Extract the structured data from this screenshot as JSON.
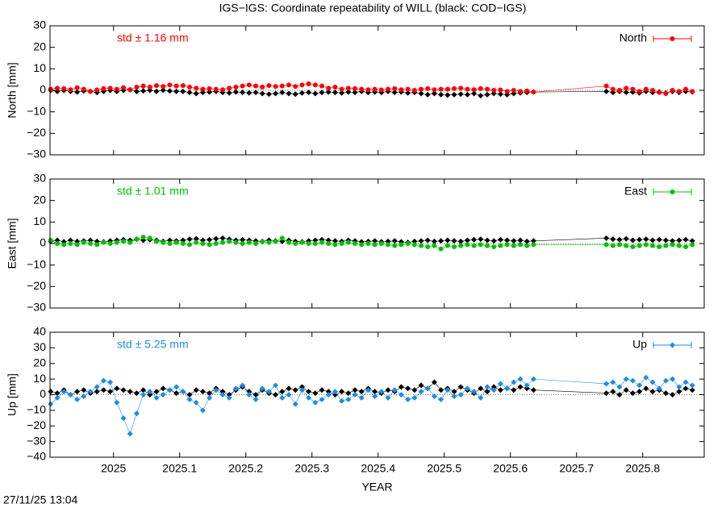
{
  "header": {
    "title": "IGS−IGS: Coordinate repeatability of WILL (black: COD−IGS)"
  },
  "footer": {
    "timestamp": "27/11/25 13:04"
  },
  "chart_data": [
    {
      "type": "line",
      "ylabel": "North [mm]",
      "annotation": "std ± 1.16 mm",
      "legend": "top-right",
      "zero_line": true,
      "xlim": [
        2024.904,
        2025.893
      ],
      "xticks": [
        2025,
        2025.1,
        2025.2,
        2025.3,
        2025.4,
        2025.5,
        2025.6,
        2025.7,
        2025.8
      ],
      "ylim": [
        -30,
        30
      ],
      "yticks": [
        {
          "value": -30,
          "label": "−30"
        },
        {
          "value": -20,
          "label": "−20"
        },
        {
          "value": -10,
          "label": "−10"
        },
        0,
        10,
        20,
        30
      ],
      "x": [
        2024.905,
        2024.915,
        2024.925,
        2024.935,
        2024.945,
        2024.955,
        2024.965,
        2024.975,
        2024.985,
        2024.995,
        2025.005,
        2025.015,
        2025.025,
        2025.035,
        2025.045,
        2025.055,
        2025.065,
        2025.075,
        2025.085,
        2025.095,
        2025.105,
        2025.115,
        2025.125,
        2025.135,
        2025.145,
        2025.155,
        2025.165,
        2025.175,
        2025.185,
        2025.195,
        2025.205,
        2025.215,
        2025.225,
        2025.235,
        2025.245,
        2025.255,
        2025.265,
        2025.275,
        2025.285,
        2025.295,
        2025.305,
        2025.315,
        2025.325,
        2025.335,
        2025.345,
        2025.355,
        2025.365,
        2025.375,
        2025.385,
        2025.395,
        2025.405,
        2025.415,
        2025.425,
        2025.435,
        2025.445,
        2025.455,
        2025.465,
        2025.475,
        2025.485,
        2025.495,
        2025.505,
        2025.515,
        2025.525,
        2025.535,
        2025.545,
        2025.555,
        2025.565,
        2025.575,
        2025.585,
        2025.595,
        2025.605,
        2025.615,
        2025.625,
        2025.635,
        2025.745,
        2025.755,
        2025.765,
        2025.775,
        2025.785,
        2025.795,
        2025.805,
        2025.815,
        2025.825,
        2025.835,
        2025.845,
        2025.855,
        2025.865,
        2025.875
      ],
      "series": [
        {
          "color": "#000000",
          "marker": "diamond",
          "values": [
            0,
            -0.5,
            0,
            -0.5,
            -0.8,
            -0.3,
            -0.5,
            -1,
            -0.5,
            0,
            -0.5,
            0,
            0.3,
            -0.5,
            -0.3,
            0,
            -0.5,
            0,
            -0.3,
            -0.5,
            -0.5,
            -1,
            -1.5,
            -1,
            -0.8,
            -0.5,
            -1,
            -1.2,
            -0.8,
            -1,
            -1.2,
            -1,
            -1.5,
            -1.8,
            -1.5,
            -1,
            -1.5,
            -1.8,
            -1.2,
            -1,
            -1.5,
            -1,
            -0.8,
            -1,
            -1.2,
            -0.8,
            -1,
            -0.5,
            -1,
            -0.8,
            -1,
            -0.5,
            -1,
            -0.8,
            -1.2,
            -1,
            -1.5,
            -2,
            -1.5,
            -2,
            -2.2,
            -2,
            -1.8,
            -2,
            -1.5,
            -2.5,
            -2,
            -1.5,
            -1.8,
            -2,
            -1.5,
            -1.2,
            -1,
            -0.8,
            -0.5,
            -1,
            -0.5,
            -1,
            -0.8,
            -1.2,
            -0.5,
            -1,
            -0.8,
            -1.2,
            -0.5,
            -1,
            -0.5,
            -0.8
          ]
        },
        {
          "name": "North",
          "color": "#ff0000",
          "marker": "circle",
          "values": [
            0.5,
            1,
            0.8,
            0.3,
            1.2,
            0.5,
            -0.5,
            0.2,
            0.8,
            1,
            0.5,
            1.2,
            0.3,
            1.5,
            2,
            1.5,
            2.2,
            1.8,
            2.5,
            2,
            2.2,
            1.5,
            1,
            0.5,
            0.8,
            0.5,
            0.3,
            1,
            1.5,
            2,
            2.5,
            2,
            1.5,
            2.2,
            1.8,
            2,
            2.5,
            1.8,
            2.5,
            3,
            2.5,
            2,
            1,
            1.5,
            0.5,
            1,
            0.8,
            0.5,
            0.3,
            0.5,
            0.2,
            0.5,
            0.8,
            0.3,
            0.5,
            0,
            0.5,
            0.8,
            0.3,
            0.5,
            0.5,
            0.8,
            1,
            0.5,
            0.3,
            0.8,
            0.5,
            0,
            0.2,
            -0.5,
            0,
            -0.5,
            -0.3,
            -0.8,
            2,
            0.5,
            0,
            1,
            0.5,
            -0.5,
            0.5,
            0,
            -1,
            -1.5,
            0,
            -0.5,
            0.5,
            -0.5
          ]
        }
      ]
    },
    {
      "type": "line",
      "ylabel": "East [mm]",
      "annotation": "std ± 1.01 mm",
      "legend": "top-right",
      "zero_line": true,
      "xlim": [
        2024.904,
        2025.893
      ],
      "xticks": [
        2025,
        2025.1,
        2025.2,
        2025.3,
        2025.4,
        2025.5,
        2025.6,
        2025.7,
        2025.8
      ],
      "ylim": [
        -30,
        30
      ],
      "yticks": [
        {
          "value": -30,
          "label": "−30"
        },
        {
          "value": -20,
          "label": "−20"
        },
        {
          "value": -10,
          "label": "−10"
        },
        0,
        10,
        20,
        30
      ],
      "x": [
        2024.905,
        2024.915,
        2024.925,
        2024.935,
        2024.945,
        2024.955,
        2024.965,
        2024.975,
        2024.985,
        2024.995,
        2025.005,
        2025.015,
        2025.025,
        2025.035,
        2025.045,
        2025.055,
        2025.065,
        2025.075,
        2025.085,
        2025.095,
        2025.105,
        2025.115,
        2025.125,
        2025.135,
        2025.145,
        2025.155,
        2025.165,
        2025.175,
        2025.185,
        2025.195,
        2025.205,
        2025.215,
        2025.225,
        2025.235,
        2025.245,
        2025.255,
        2025.265,
        2025.275,
        2025.285,
        2025.295,
        2025.305,
        2025.315,
        2025.325,
        2025.335,
        2025.345,
        2025.355,
        2025.365,
        2025.375,
        2025.385,
        2025.395,
        2025.405,
        2025.415,
        2025.425,
        2025.435,
        2025.445,
        2025.455,
        2025.465,
        2025.475,
        2025.485,
        2025.495,
        2025.505,
        2025.515,
        2025.525,
        2025.535,
        2025.545,
        2025.555,
        2025.565,
        2025.575,
        2025.585,
        2025.595,
        2025.605,
        2025.615,
        2025.625,
        2025.635,
        2025.745,
        2025.755,
        2025.765,
        2025.775,
        2025.785,
        2025.795,
        2025.805,
        2025.815,
        2025.825,
        2025.835,
        2025.845,
        2025.855,
        2025.865,
        2025.875
      ],
      "series": [
        {
          "color": "#000000",
          "marker": "diamond",
          "values": [
            1,
            1.5,
            0.8,
            1.5,
            1,
            1.2,
            1.5,
            1,
            0.8,
            1.2,
            1.5,
            1.8,
            1.5,
            2,
            1.5,
            1.8,
            1.5,
            1,
            1.5,
            1.2,
            1.5,
            2,
            2.2,
            1.5,
            1.8,
            2.2,
            2.5,
            2,
            1.5,
            1.8,
            1.5,
            1.2,
            1,
            1.5,
            1.2,
            1,
            1.5,
            1,
            0.8,
            1.2,
            1.5,
            1.8,
            1.5,
            1.2,
            1,
            1.5,
            1.2,
            0.8,
            1,
            1.2,
            0.8,
            1,
            1.2,
            0.8,
            0.5,
            1,
            1.2,
            1.5,
            1,
            1.2,
            1.5,
            1.2,
            1,
            1.5,
            1.8,
            2,
            1.5,
            1.2,
            1.8,
            1.5,
            1.2,
            1.5,
            1,
            1.2,
            2.5,
            2,
            1.8,
            2.2,
            1.5,
            1.8,
            2,
            1.5,
            1.8,
            1.5,
            1.2,
            1.5,
            1.8,
            1.2
          ]
        },
        {
          "name": "East",
          "color": "#00c000",
          "marker": "circle",
          "values": [
            1.5,
            0,
            -0.5,
            0,
            -0.5,
            0.5,
            0,
            -0.5,
            0.5,
            0,
            0.5,
            1,
            0.5,
            2,
            3,
            2.5,
            1,
            0.5,
            0,
            0.5,
            0,
            -0.5,
            0.5,
            0,
            -0.5,
            0,
            0.5,
            1,
            0.5,
            0,
            0.5,
            0,
            0.8,
            0.5,
            1,
            2.5,
            0.5,
            0,
            0.5,
            0,
            0,
            0.5,
            0,
            -0.5,
            0,
            0.5,
            0,
            -0.5,
            0,
            -0.5,
            0,
            -0.5,
            -1,
            -0.5,
            0,
            -0.5,
            -1,
            -1.5,
            -1,
            -2.5,
            -1,
            -1.5,
            -1,
            -0.5,
            -1,
            -0.5,
            -1,
            -1.5,
            -1,
            -0.5,
            -1,
            -0.5,
            -1,
            -0.5,
            -0.5,
            -1,
            -0.5,
            -1,
            -1.5,
            -1,
            -0.5,
            -1,
            -1.5,
            -1,
            -0.5,
            -1,
            -1.5,
            -0.5
          ]
        }
      ]
    },
    {
      "type": "line",
      "ylabel": "Up [mm]",
      "xlabel": "YEAR",
      "annotation": "std ± 5.25 mm",
      "legend": "top-right",
      "zero_line": true,
      "xlim": [
        2024.904,
        2025.893
      ],
      "xticks": [
        2025,
        2025.1,
        2025.2,
        2025.3,
        2025.4,
        2025.5,
        2025.6,
        2025.7,
        2025.8
      ],
      "ylim": [
        -40,
        40
      ],
      "yticks": [
        {
          "value": -40,
          "label": "−40"
        },
        {
          "value": -30,
          "label": "−30"
        },
        {
          "value": -20,
          "label": "−20"
        },
        {
          "value": -10,
          "label": "−10"
        },
        0,
        10,
        20,
        30,
        40
      ],
      "x": [
        2024.905,
        2024.915,
        2024.925,
        2024.935,
        2024.945,
        2024.955,
        2024.965,
        2024.975,
        2024.985,
        2024.995,
        2025.005,
        2025.015,
        2025.025,
        2025.035,
        2025.045,
        2025.055,
        2025.065,
        2025.075,
        2025.085,
        2025.095,
        2025.105,
        2025.115,
        2025.125,
        2025.135,
        2025.145,
        2025.155,
        2025.165,
        2025.175,
        2025.185,
        2025.195,
        2025.205,
        2025.215,
        2025.225,
        2025.235,
        2025.245,
        2025.255,
        2025.265,
        2025.275,
        2025.285,
        2025.295,
        2025.305,
        2025.315,
        2025.325,
        2025.335,
        2025.345,
        2025.355,
        2025.365,
        2025.375,
        2025.385,
        2025.395,
        2025.405,
        2025.415,
        2025.425,
        2025.435,
        2025.445,
        2025.455,
        2025.465,
        2025.475,
        2025.485,
        2025.495,
        2025.505,
        2025.515,
        2025.525,
        2025.535,
        2025.545,
        2025.555,
        2025.565,
        2025.575,
        2025.585,
        2025.595,
        2025.605,
        2025.615,
        2025.625,
        2025.635,
        2025.745,
        2025.755,
        2025.765,
        2025.775,
        2025.785,
        2025.795,
        2025.805,
        2025.815,
        2025.825,
        2025.835,
        2025.845,
        2025.855,
        2025.865,
        2025.875
      ],
      "series": [
        {
          "color": "#000000",
          "marker": "diamond",
          "values": [
            2,
            1,
            3,
            0,
            2,
            3,
            1,
            2,
            3,
            2,
            4,
            3,
            2,
            1,
            3,
            0,
            2,
            4,
            3,
            1,
            2,
            0,
            3,
            2,
            1,
            4,
            2,
            0,
            3,
            5,
            2,
            0,
            3,
            1,
            0,
            2,
            4,
            3,
            5,
            2,
            1,
            3,
            2,
            0,
            2,
            1,
            3,
            2,
            4,
            2,
            1,
            3,
            2,
            5,
            4,
            3,
            6,
            4,
            8,
            3,
            4,
            2,
            5,
            3,
            1,
            4,
            2,
            5,
            3,
            4,
            3,
            5,
            4,
            3,
            1,
            2,
            0,
            3,
            1,
            2,
            4,
            2,
            3,
            1,
            0,
            2,
            4,
            3
          ]
        },
        {
          "name": "Up",
          "color": "#1e8ae6",
          "marker": "diamond",
          "values": [
            -6,
            -2,
            2,
            0,
            -3,
            -1,
            2,
            5,
            9,
            8,
            -5,
            -15,
            -25,
            -12,
            0,
            2,
            -2,
            0,
            3,
            5,
            2,
            -3,
            -5,
            -10,
            -2,
            3,
            0,
            -2,
            4,
            6,
            0,
            -3,
            4,
            2,
            6,
            -2,
            0,
            -6,
            3,
            -2,
            -5,
            -3,
            0,
            2,
            -4,
            -3,
            0,
            -2,
            3,
            -1,
            2,
            -2,
            3,
            0,
            -3,
            -2,
            2,
            4,
            -1,
            -3,
            3,
            -1,
            0,
            4,
            2,
            -2,
            5,
            3,
            7,
            4,
            8,
            10,
            6,
            10,
            7,
            8,
            5,
            10,
            9,
            6,
            11,
            8,
            4,
            9,
            10,
            5,
            8,
            6
          ]
        }
      ]
    }
  ]
}
